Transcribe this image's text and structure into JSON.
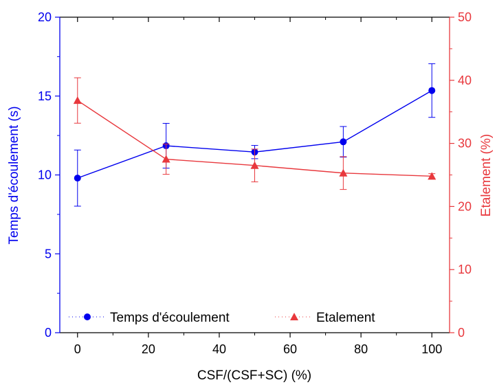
{
  "chart_data": {
    "type": "line",
    "xlabel": "CSF/(CSF+SC) (%)",
    "ylabel_left": "Temps d'écoulement (s)",
    "ylabel_right": "Etalement (%)",
    "xlim": [
      -5,
      105
    ],
    "ylim_left": [
      0,
      20
    ],
    "ylim_right": [
      0,
      50
    ],
    "x_ticks": [
      0,
      20,
      40,
      60,
      80,
      100
    ],
    "y_left_ticks": [
      0,
      5,
      10,
      15,
      20
    ],
    "y_right_ticks": [
      0,
      10,
      20,
      30,
      40,
      50
    ],
    "grid": false,
    "legend_position": "bottom",
    "series": [
      {
        "name": "Temps d'écoulement",
        "axis": "left",
        "color": "#0000ee",
        "marker": "circle",
        "x": [
          0,
          25,
          50,
          75,
          100
        ],
        "y": [
          9.8,
          11.85,
          11.45,
          12.1,
          15.35
        ],
        "err": [
          1.78,
          1.42,
          0.42,
          0.97,
          1.7
        ]
      },
      {
        "name": "Etalement",
        "axis": "right",
        "color": "#e8383d",
        "marker": "triangle",
        "x": [
          0,
          25,
          50,
          75,
          100
        ],
        "y": [
          36.8,
          27.5,
          26.5,
          25.3,
          24.8
        ],
        "err": [
          3.6,
          2.4,
          2.6,
          2.6,
          0.4
        ]
      }
    ]
  }
}
